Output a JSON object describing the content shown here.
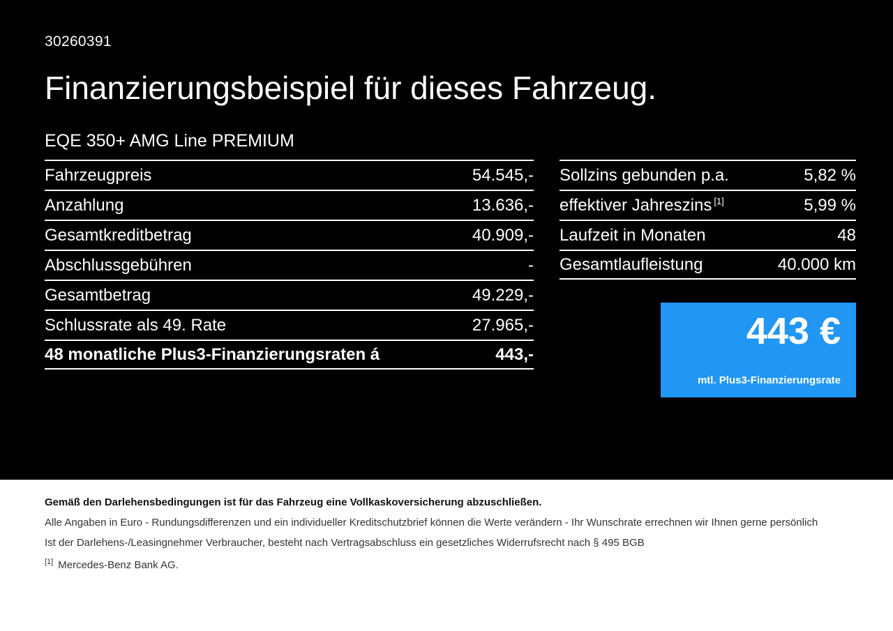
{
  "header": {
    "doc_id": "30260391",
    "title": "Finanzierungsbeispiel für dieses Fahrzeug.",
    "vehicle": "EQE 350+ AMG Line PREMIUM"
  },
  "left_table": {
    "rows": [
      {
        "label": "Fahrzeugpreis",
        "value": "54.545,-"
      },
      {
        "label": "Anzahlung",
        "value": "13.636,-"
      },
      {
        "label": "Gesamtkreditbetrag",
        "value": "40.909,-"
      },
      {
        "label": "Abschlussgebühren",
        "value": "-"
      },
      {
        "label": "Gesamtbetrag",
        "value": "49.229,-"
      },
      {
        "label": "Schlussrate als 49. Rate",
        "value": "27.965,-"
      },
      {
        "label": "48 monatliche Plus3-Finanzierungsraten á",
        "value": "443,-"
      }
    ]
  },
  "right_table": {
    "rows": [
      {
        "label": "Sollzins gebunden p.a.",
        "value": "5,82 %"
      },
      {
        "label": "effektiver Jahreszins",
        "sup": "[1]",
        "value": "5,99 %"
      },
      {
        "label": "Laufzeit in Monaten",
        "value": "48"
      },
      {
        "label": "Gesamtlaufleistung",
        "value": "40.000 km"
      }
    ]
  },
  "price_box": {
    "amount": "443 €",
    "caption": "mtl. Plus3-Finanzierungsrate",
    "background": "#2196f3"
  },
  "footer": {
    "insurance_note": "Gemäß den Darlehensbedingungen ist für das Fahrzeug eine Vollkaskoversicherung abzuschließen.",
    "disclaimer_1": "Alle Angaben in Euro - Rundungsdifferenzen und ein individueller Kreditschutzbrief können die Werte verändern - Ihr Wunschrate errechnen wir Ihnen gerne persönlich",
    "disclaimer_2": "Ist der Darlehens-/Leasingnehmer Verbraucher, besteht nach Vertragsabschluss ein gesetzliches Widerrufsrecht nach § 495 BGB",
    "footnote_marker": "[1]",
    "footnote_text": "Mercedes-Benz Bank AG."
  }
}
